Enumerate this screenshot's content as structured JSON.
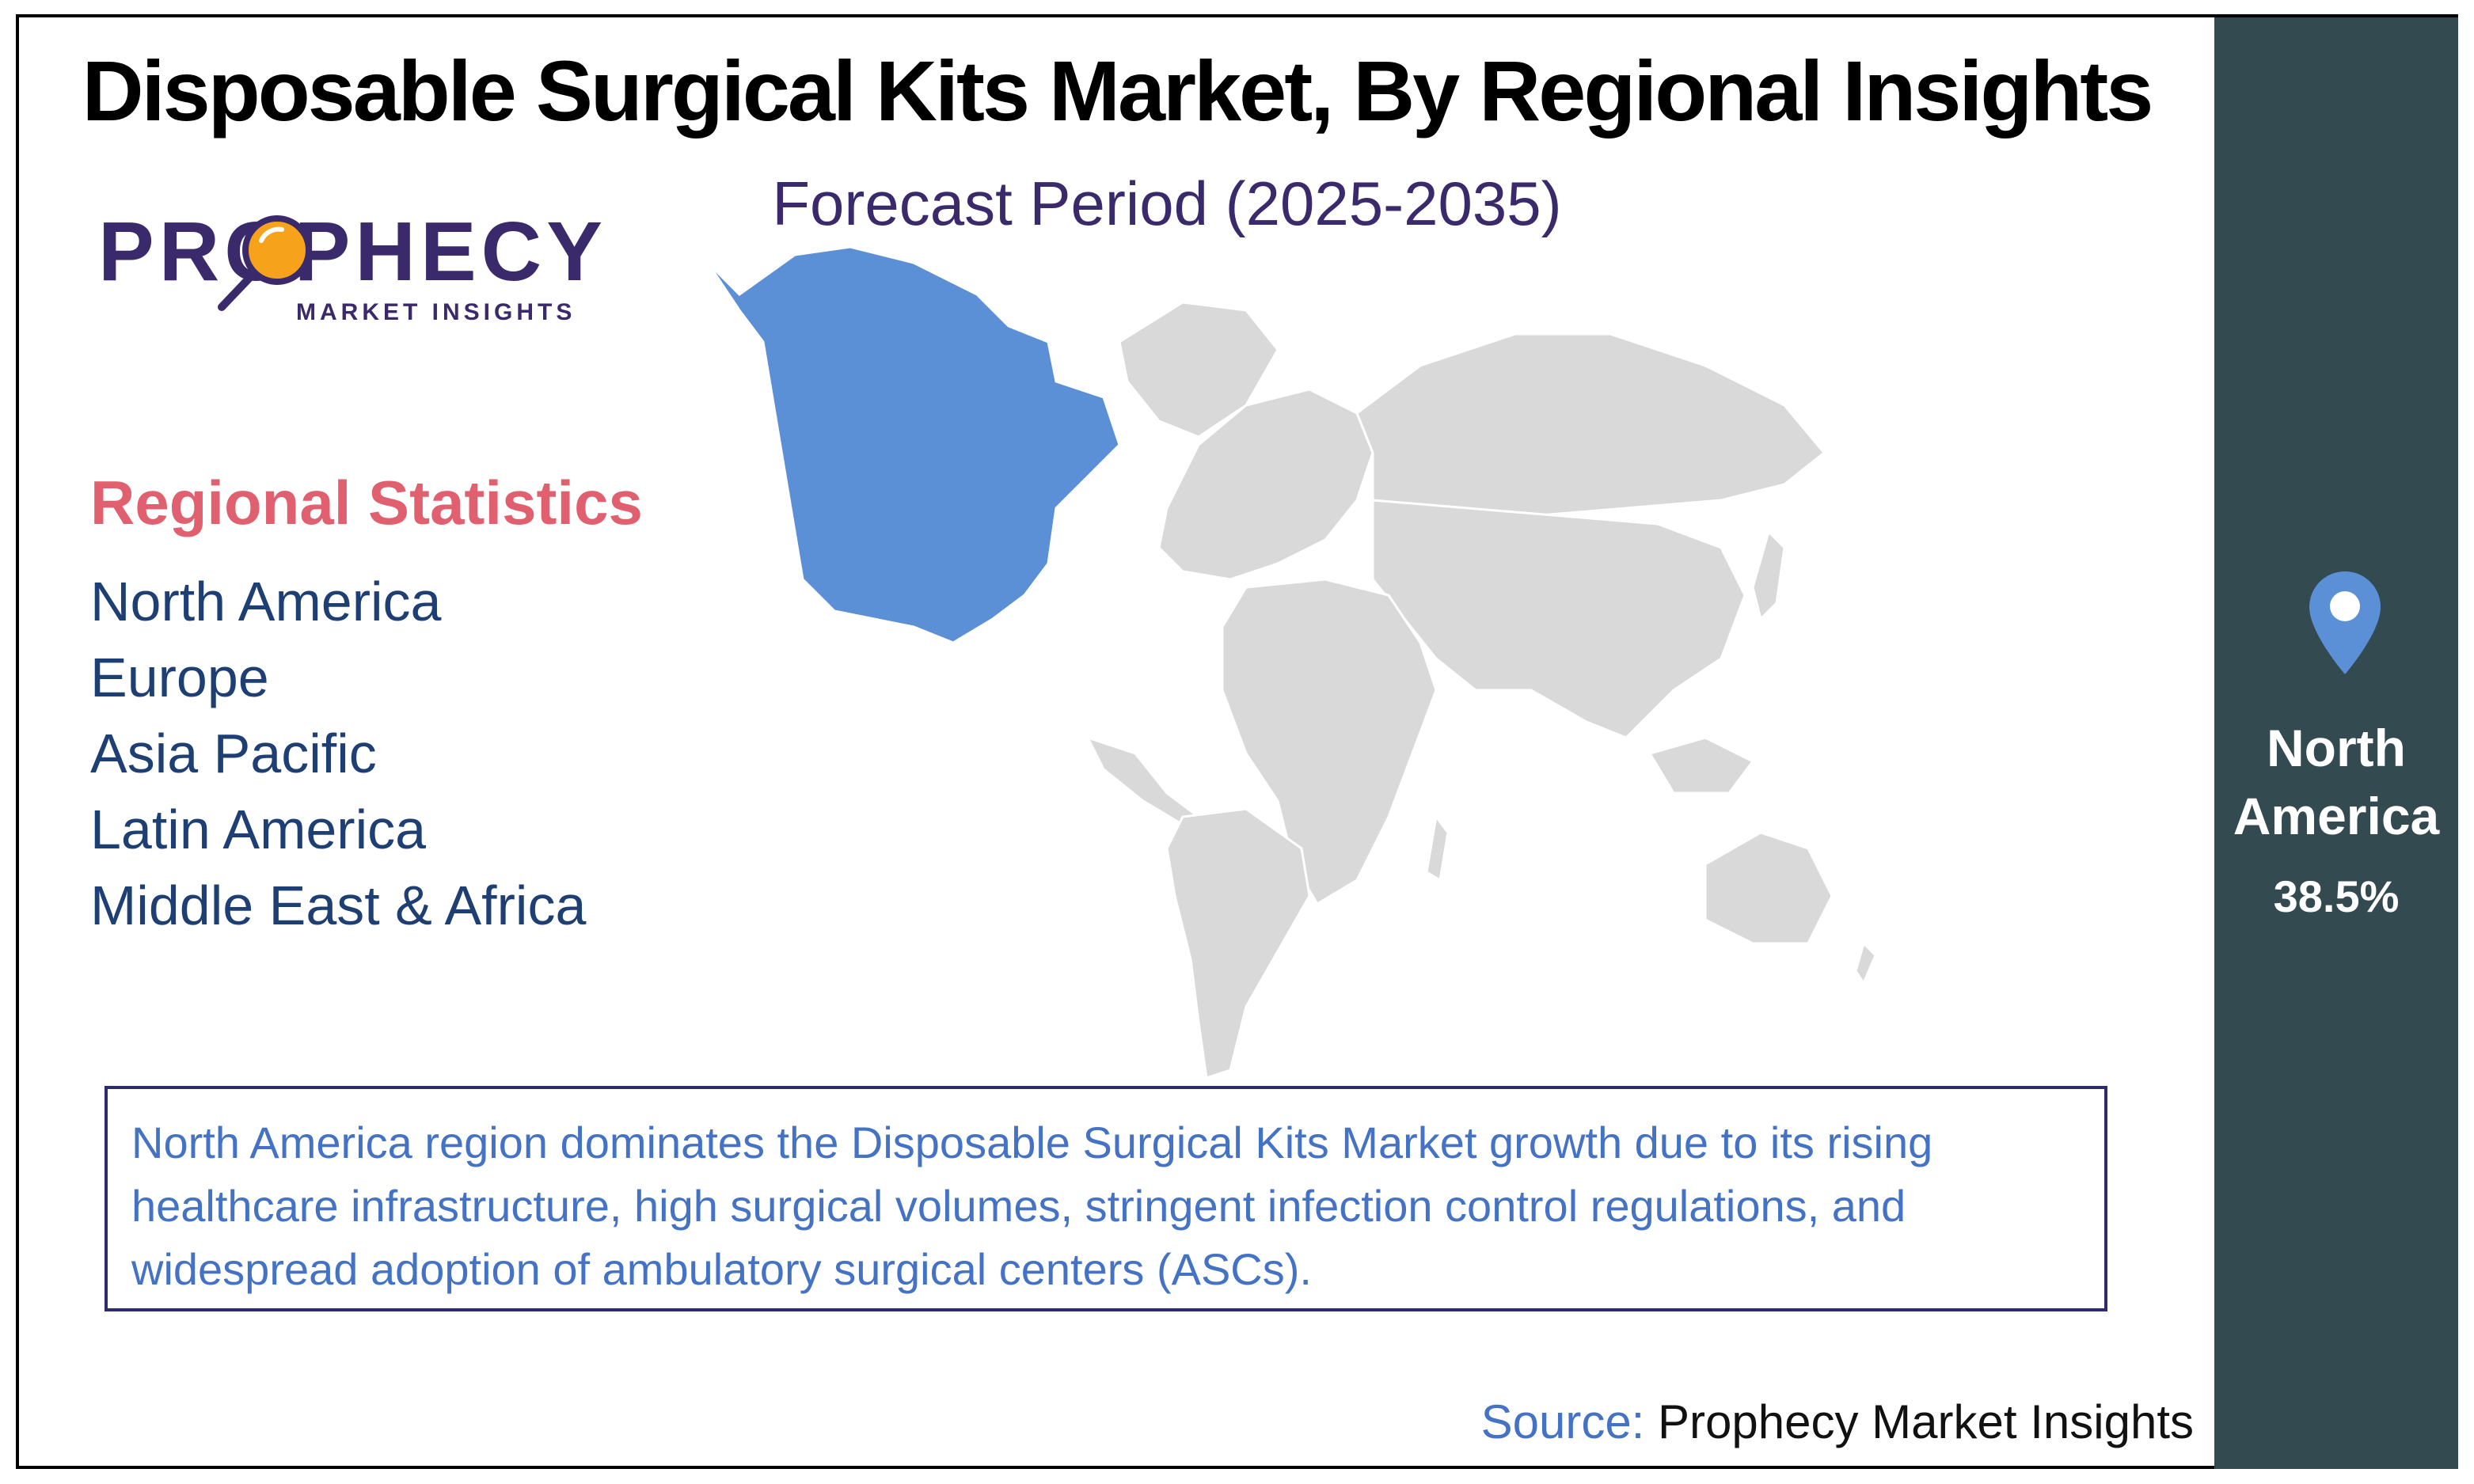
{
  "header": {
    "title": "Disposable Surgical Kits Market, By Regional Insights",
    "subtitle": "Forecast Period (2025-2035)"
  },
  "logo": {
    "brand": "PROPHECY",
    "tagline": "MARKET INSIGHTS"
  },
  "regional_statistics": {
    "heading": "Regional Statistics",
    "regions": [
      "North America",
      "Europe",
      "Asia Pacific",
      "Latin America",
      "Middle East & Africa"
    ]
  },
  "map": {
    "highlighted_region": "North America",
    "highlight_color": "#5b8fd6",
    "base_color": "#d9d9d9"
  },
  "insight": {
    "text": "North America region dominates the Disposable Surgical Kits Market growth due to its rising healthcare infrastructure, high surgical volumes, stringent infection control regulations, and widespread adoption of ambulatory surgical centers (ASCs)."
  },
  "source": {
    "label": "Source:",
    "value": "Prophecy Market Insights"
  },
  "side_panel": {
    "icon": "location-pin-icon",
    "region": "North America",
    "share": "38.5%",
    "background": "#334a50"
  }
}
